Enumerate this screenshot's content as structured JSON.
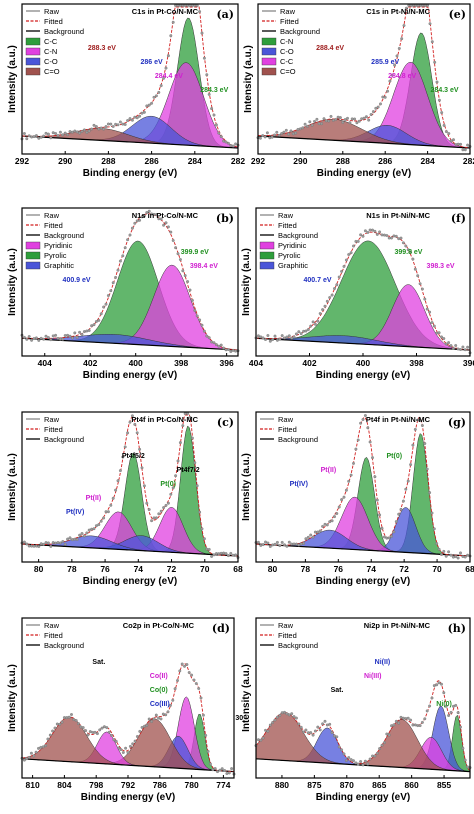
{
  "chart_data": [
    {
      "id": "a",
      "type": "line",
      "title": "C1s in Pt-Co/N-MC",
      "letter": "(a)",
      "xlabel": "Binding energy (eV)",
      "ylabel": "Intensity (a.u.)",
      "xlim": [
        292,
        282
      ],
      "xticks": [
        "292",
        "290",
        "288",
        "286",
        "284",
        "282"
      ],
      "legend": [
        "Raw",
        "Fitted",
        "Background",
        "C-C",
        "C-N",
        "C-O",
        "C=O"
      ],
      "components": [
        {
          "name": "C-C",
          "center": 284.3,
          "height": 0.85,
          "width": 0.5,
          "color": "#2e9e3b"
        },
        {
          "name": "C-N",
          "center": 284.4,
          "height": 0.55,
          "width": 0.8,
          "color": "#e040e0"
        },
        {
          "name": "C-O",
          "center": 286.0,
          "height": 0.18,
          "width": 0.9,
          "color": "#4a55d8"
        },
        {
          "name": "C=O",
          "center": 288.3,
          "height": 0.08,
          "width": 1.2,
          "color": "#a0524e"
        }
      ],
      "annotations": [
        {
          "text": "288.3 eV",
          "x": 288.3,
          "color": "#a02020"
        },
        {
          "text": "286 eV",
          "x": 286.0,
          "color": "#2030c0"
        },
        {
          "text": "284.4 eV",
          "x": 285.2,
          "color": "#d020d0"
        },
        {
          "text": "284.3 eV",
          "x": 283.1,
          "color": "#209020"
        }
      ]
    },
    {
      "id": "e",
      "type": "line",
      "title": "C1s in Pt-Ni/N-MC",
      "letter": "(e)",
      "xlabel": "Binding energy (eV)",
      "ylabel": "Intensity (a.u.)",
      "xlim": [
        292,
        282
      ],
      "xticks": [
        "292",
        "290",
        "288",
        "286",
        "284",
        "282"
      ],
      "legend": [
        "Raw",
        "Fitted",
        "Background",
        "C-N",
        "C-O",
        "C-C",
        "C=O"
      ],
      "components": [
        {
          "name": "C-N",
          "center": 284.3,
          "height": 0.75,
          "width": 0.5,
          "color": "#2e9e3b"
        },
        {
          "name": "C-C",
          "center": 284.8,
          "height": 0.55,
          "width": 0.8,
          "color": "#e040e0"
        },
        {
          "name": "C-O",
          "center": 285.9,
          "height": 0.12,
          "width": 0.9,
          "color": "#4a55d8"
        },
        {
          "name": "C=O",
          "center": 288.4,
          "height": 0.14,
          "width": 1.3,
          "color": "#a0524e"
        }
      ],
      "annotations": [
        {
          "text": "288.4 eV",
          "x": 288.6,
          "color": "#a02020"
        },
        {
          "text": "285.9 eV",
          "x": 286.0,
          "color": "#2030c0"
        },
        {
          "text": "284.8 eV",
          "x": 285.2,
          "color": "#d020d0"
        },
        {
          "text": "284.3 eV",
          "x": 283.2,
          "color": "#209020"
        }
      ]
    },
    {
      "id": "b",
      "type": "line",
      "title": "N1s in Pt-Co/N-MC",
      "letter": "(b)",
      "xlabel": "Binding energy (eV)",
      "ylabel": "Intensity (a.u.)",
      "xlim": [
        405,
        395.5
      ],
      "xticks": [
        "404",
        "402",
        "400",
        "398",
        "396"
      ],
      "legend": [
        "Raw",
        "Fitted",
        "Background",
        "Pyridinic",
        "Pyrolic",
        "Graphitic"
      ],
      "components": [
        {
          "name": "Pyrolic",
          "center": 399.9,
          "height": 0.7,
          "width": 0.9,
          "color": "#2e9e3b"
        },
        {
          "name": "Pyridinic",
          "center": 398.4,
          "height": 0.55,
          "width": 0.8,
          "color": "#e040e0"
        },
        {
          "name": "Graphitic",
          "center": 400.9,
          "height": 0.06,
          "width": 1.5,
          "color": "#4a55d8"
        }
      ],
      "annotations": [
        {
          "text": "399.9 eV",
          "x": 397.4,
          "color": "#209020"
        },
        {
          "text": "398.4 eV",
          "x": 397.0,
          "color": "#d020d0"
        },
        {
          "text": "400.9 eV",
          "x": 402.6,
          "color": "#2030c0"
        }
      ]
    },
    {
      "id": "f",
      "type": "line",
      "title": "N1s in Pt-Ni/N-MC",
      "letter": "(f)",
      "xlabel": "Binding energy (eV)",
      "ylabel": "Intensity (a.u.)",
      "xlim": [
        404,
        396
      ],
      "xticks": [
        "404",
        "402",
        "400",
        "398",
        "396"
      ],
      "legend": [
        "Raw",
        "Fitted",
        "Background",
        "Pyridinic",
        "Pyrolic",
        "Graphitic"
      ],
      "components": [
        {
          "name": "Pyrolic",
          "center": 399.8,
          "height": 0.7,
          "width": 1.0,
          "color": "#2e9e3b"
        },
        {
          "name": "Pyridinic",
          "center": 398.3,
          "height": 0.42,
          "width": 0.6,
          "color": "#e040e0"
        },
        {
          "name": "Graphitic",
          "center": 400.7,
          "height": 0.05,
          "width": 1.2,
          "color": "#4a55d8"
        }
      ],
      "annotations": [
        {
          "text": "399.8 eV",
          "x": 398.3,
          "color": "#209020"
        },
        {
          "text": "398.3 eV",
          "x": 397.1,
          "color": "#d020d0"
        },
        {
          "text": "400.7 eV",
          "x": 401.7,
          "color": "#2030c0"
        }
      ]
    },
    {
      "id": "c",
      "type": "line",
      "title": "Pt4f in Pt-Co/N-MC",
      "letter": "(c)",
      "xlabel": "Binding energy (eV)",
      "ylabel": "Intensity (a.u.)",
      "xlim": [
        81,
        68
      ],
      "xticks": [
        "80",
        "78",
        "76",
        "74",
        "72",
        "70",
        "68"
      ],
      "legend": [
        "Raw",
        "Fitted",
        "Background"
      ],
      "components": [
        {
          "name": "Pt(0)",
          "center": 71.0,
          "height": 0.85,
          "width": 0.45,
          "color": "#2e9e3b"
        },
        {
          "name": "Pt(0)",
          "center": 74.3,
          "height": 0.65,
          "width": 0.5,
          "color": "#2e9e3b"
        },
        {
          "name": "Pt(II)",
          "center": 72.0,
          "height": 0.3,
          "width": 0.7,
          "color": "#e040e0"
        },
        {
          "name": "Pt(II)",
          "center": 75.2,
          "height": 0.25,
          "width": 0.8,
          "color": "#e040e0"
        },
        {
          "name": "Pt(IV)",
          "center": 73.8,
          "height": 0.1,
          "width": 1.0,
          "color": "#4a55d8"
        },
        {
          "name": "Pt(IV)",
          "center": 76.8,
          "height": 0.08,
          "width": 1.2,
          "color": "#4a55d8"
        }
      ],
      "annotations": [
        {
          "text": "Pt4f5/2",
          "x": 74.3,
          "color": "#000000"
        },
        {
          "text": "Pt4f7/2",
          "x": 71.0,
          "color": "#000000"
        },
        {
          "text": "Pt(0)",
          "x": 72.2,
          "color": "#209020"
        },
        {
          "text": "Pt(II)",
          "x": 76.7,
          "color": "#d020d0"
        },
        {
          "text": "Pt(IV)",
          "x": 77.8,
          "color": "#2030c0"
        }
      ]
    },
    {
      "id": "g",
      "type": "line",
      "title": "Pt4f in Pt-Ni/N-MC",
      "letter": "(g)",
      "xlabel": "Binding energy (eV)",
      "ylabel": "Intensity (a.u.)",
      "xlim": [
        81,
        68
      ],
      "xticks": [
        "80",
        "78",
        "76",
        "74",
        "72",
        "70",
        "68"
      ],
      "legend": [
        "Raw",
        "Fitted",
        "Background"
      ],
      "components": [
        {
          "name": "Pt(0)",
          "center": 71.0,
          "height": 0.8,
          "width": 0.45,
          "color": "#2e9e3b"
        },
        {
          "name": "Pt(0)",
          "center": 74.3,
          "height": 0.62,
          "width": 0.5,
          "color": "#2e9e3b"
        },
        {
          "name": "Pt(II)",
          "center": 71.9,
          "height": 0.3,
          "width": 0.6,
          "color": "#4a55d8"
        },
        {
          "name": "Pt(II)",
          "center": 75.0,
          "height": 0.35,
          "width": 0.8,
          "color": "#e040e0"
        },
        {
          "name": "Pt(IV)",
          "center": 76.5,
          "height": 0.12,
          "width": 1.0,
          "color": "#4a55d8"
        }
      ],
      "annotations": [
        {
          "text": "Pt(0)",
          "x": 72.6,
          "color": "#209020"
        },
        {
          "text": "Pt(II)",
          "x": 76.6,
          "color": "#d020d0"
        },
        {
          "text": "Pt(IV)",
          "x": 78.4,
          "color": "#2030c0"
        }
      ]
    },
    {
      "id": "d",
      "type": "line",
      "title": "Co2p in Pt-Co/N-MC",
      "letter": "(d)",
      "xlabel": "Binding energy (eV)",
      "ylabel": "Intensity (a.u.)",
      "xlim": [
        812,
        772
      ],
      "xticks": [
        "810",
        "804",
        "798",
        "792",
        "786",
        "780",
        "774"
      ],
      "legend": [
        "Raw",
        "Fitted",
        "Background"
      ],
      "components": [
        {
          "name": "Co(0)",
          "center": 778.5,
          "height": 0.35,
          "width": 1.0,
          "color": "#2e9e3b"
        },
        {
          "name": "Co(II)",
          "center": 781.0,
          "height": 0.45,
          "width": 1.5,
          "color": "#e040e0"
        },
        {
          "name": "Co(III)",
          "center": 782.5,
          "height": 0.2,
          "width": 1.8,
          "color": "#4a55d8"
        },
        {
          "name": "Sat.",
          "center": 787.0,
          "height": 0.3,
          "width": 3.0,
          "color": "#a0524e"
        },
        {
          "name": "Co(II)",
          "center": 796.0,
          "height": 0.2,
          "width": 1.8,
          "color": "#e040e0"
        },
        {
          "name": "Sat.",
          "center": 803.0,
          "height": 0.28,
          "width": 3.2,
          "color": "#a0524e"
        }
      ],
      "annotations": [
        {
          "text": "Sat.",
          "x": 797.5,
          "color": "#000000"
        },
        {
          "text": "Co(II)",
          "x": 786.2,
          "color": "#d020d0"
        },
        {
          "text": "Co(0)",
          "x": 786.2,
          "color": "#209020"
        },
        {
          "text": "Co(III)",
          "x": 786.0,
          "color": "#2030c0"
        },
        {
          "text": "30",
          "x": 771.0,
          "color": "#000000"
        }
      ]
    },
    {
      "id": "h",
      "type": "line",
      "title": "Ni2p in Pt-Ni/N-MC",
      "letter": "(h)",
      "xlabel": "Binding energy (eV)",
      "ylabel": "Intensity (a.u.)",
      "xlim": [
        884,
        851
      ],
      "xticks": [
        "880",
        "875",
        "870",
        "865",
        "860",
        "855"
      ],
      "legend": [
        "Raw",
        "Fitted",
        "Background"
      ],
      "components": [
        {
          "name": "Ni(0)",
          "center": 853.0,
          "height": 0.35,
          "width": 0.7,
          "color": "#2e9e3b"
        },
        {
          "name": "Ni(II)",
          "center": 855.5,
          "height": 0.4,
          "width": 1.2,
          "color": "#4a55d8"
        },
        {
          "name": "Ni(III)",
          "center": 857.0,
          "height": 0.2,
          "width": 1.6,
          "color": "#e040e0"
        },
        {
          "name": "Sat.",
          "center": 861.5,
          "height": 0.3,
          "width": 2.4,
          "color": "#a0524e"
        },
        {
          "name": "Ni(II)",
          "center": 873.0,
          "height": 0.22,
          "width": 1.6,
          "color": "#4a55d8"
        },
        {
          "name": "Sat.",
          "center": 879.5,
          "height": 0.3,
          "width": 2.8,
          "color": "#a0524e"
        }
      ],
      "annotations": [
        {
          "text": "Ni(II)",
          "x": 864.5,
          "color": "#2030c0"
        },
        {
          "text": "Ni(III)",
          "x": 866.0,
          "color": "#d020d0"
        },
        {
          "text": "Sat.",
          "x": 871.5,
          "color": "#000000"
        },
        {
          "text": "Ni(0)",
          "x": 855.0,
          "color": "#209020"
        }
      ]
    }
  ]
}
